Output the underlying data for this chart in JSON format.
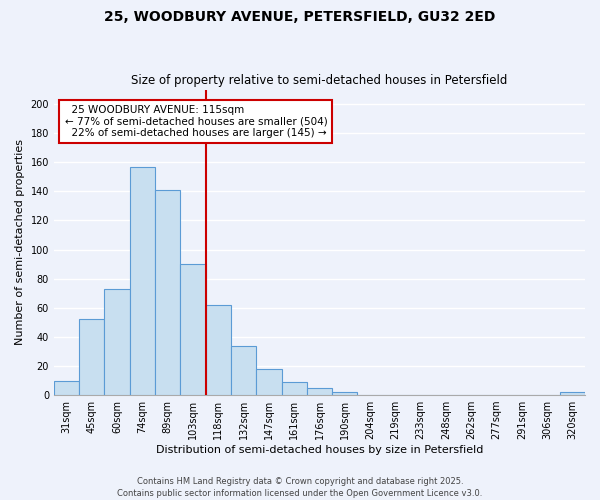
{
  "title": "25, WOODBURY AVENUE, PETERSFIELD, GU32 2ED",
  "subtitle": "Size of property relative to semi-detached houses in Petersfield",
  "xlabel": "Distribution of semi-detached houses by size in Petersfield",
  "ylabel": "Number of semi-detached properties",
  "bin_labels": [
    "31sqm",
    "45sqm",
    "60sqm",
    "74sqm",
    "89sqm",
    "103sqm",
    "118sqm",
    "132sqm",
    "147sqm",
    "161sqm",
    "176sqm",
    "190sqm",
    "204sqm",
    "219sqm",
    "233sqm",
    "248sqm",
    "262sqm",
    "277sqm",
    "291sqm",
    "306sqm",
    "320sqm"
  ],
  "bar_heights": [
    10,
    52,
    73,
    157,
    141,
    90,
    62,
    34,
    18,
    9,
    5,
    2,
    0,
    0,
    0,
    0,
    0,
    0,
    0,
    0,
    2
  ],
  "bar_color": "#c8dff0",
  "bar_edge_color": "#5b9bd5",
  "background_color": "#eef2fb",
  "grid_color": "#ffffff",
  "ylim": [
    0,
    210
  ],
  "yticks": [
    0,
    20,
    40,
    60,
    80,
    100,
    120,
    140,
    160,
    180,
    200
  ],
  "vline_index": 6,
  "property_label": "25 WOODBURY AVENUE: 115sqm",
  "pct_smaller": "77% of semi-detached houses are smaller (504)",
  "pct_larger": "22% of semi-detached houses are larger (145)",
  "annotation_box_color": "#ffffff",
  "annotation_box_edge": "#cc0000",
  "vline_color": "#cc0000",
  "footer1": "Contains HM Land Registry data © Crown copyright and database right 2025.",
  "footer2": "Contains public sector information licensed under the Open Government Licence v3.0.",
  "title_fontsize": 10,
  "subtitle_fontsize": 8.5,
  "axis_label_fontsize": 8,
  "tick_fontsize": 7,
  "annotation_fontsize": 7.5,
  "footer_fontsize": 6
}
